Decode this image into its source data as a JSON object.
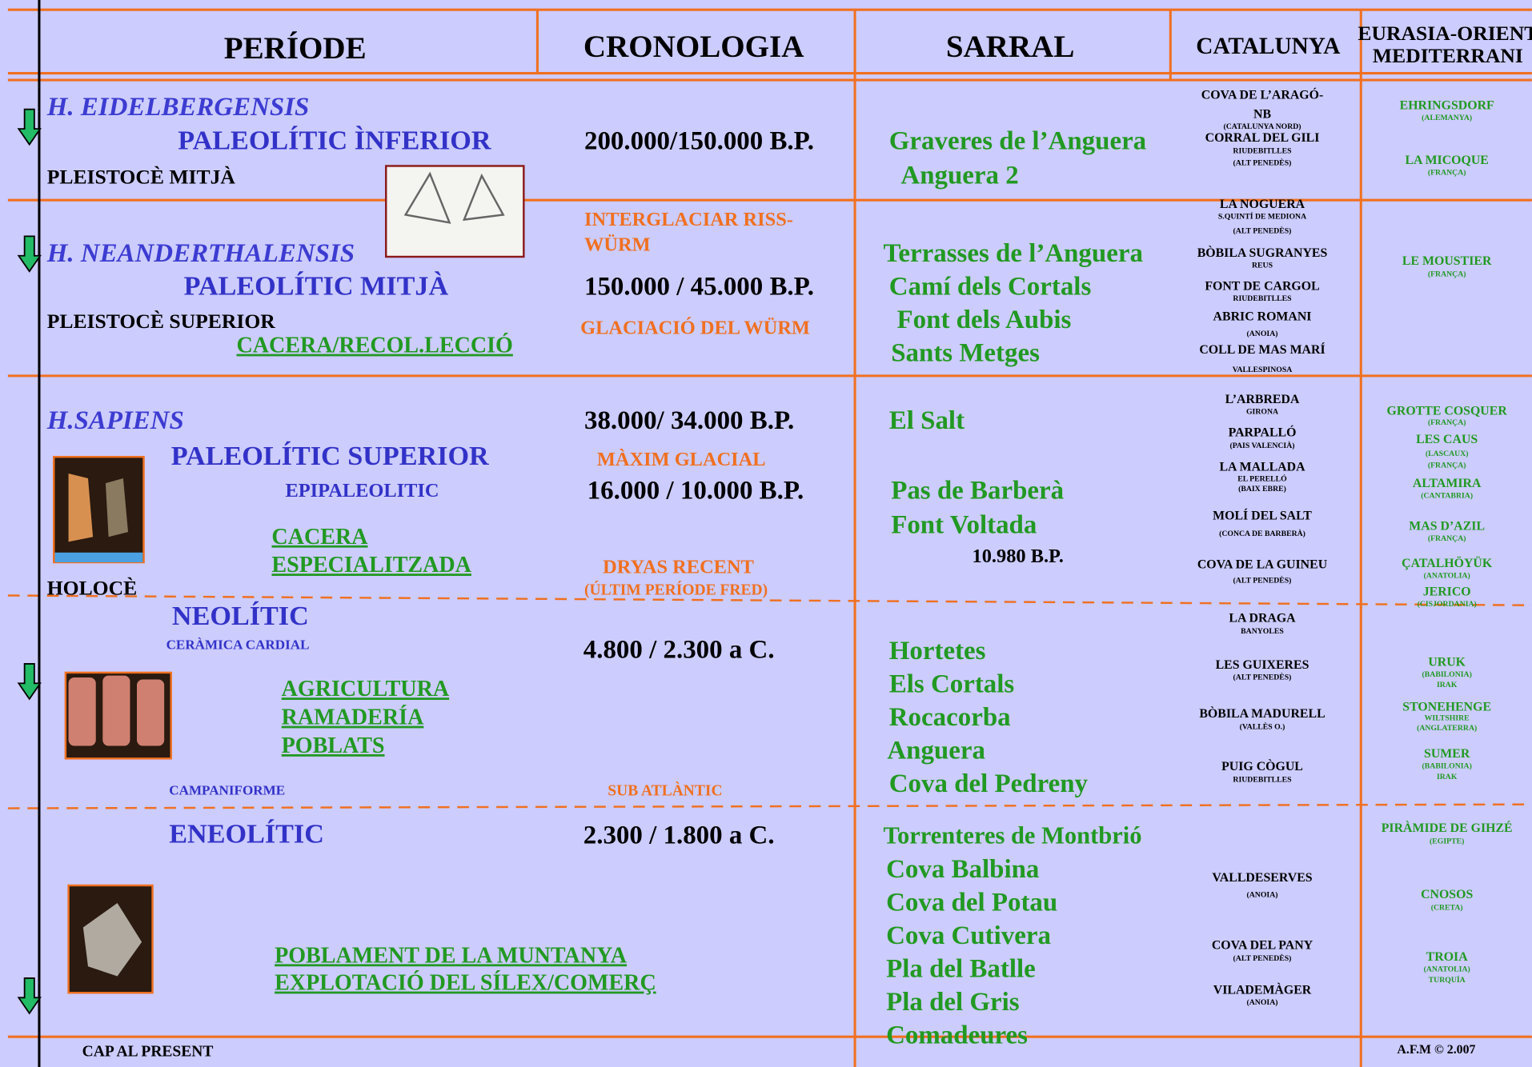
{
  "header": {
    "periode": "PERÍODE",
    "cronologia": "CRONOLOGIA",
    "sarral": "SARRAL",
    "catalunya": "CATALUNYA",
    "eurasia": [
      "EURASIA-ORIENT",
      "MEDITERRANI"
    ]
  },
  "rows": [
    {
      "periode": [
        "H. EIDELBERGENSIS",
        "PALEOLÍTIC ÌNFERIOR",
        "PLEISTOCÈ MITJÀ"
      ],
      "cronologia": [
        "200.000/150.000 B.P."
      ],
      "sarral": [
        "Graveres de l’Anguera",
        "Anguera 2"
      ],
      "catalunya": [
        "COVA DE L’ARAGÓ-",
        "NB",
        "(CATALUNYA NORD)",
        "CORRAL DEL GILI",
        "RIUDEBITLLES",
        "(ALT PENEDÈS)"
      ],
      "eurasia": [
        "EHRINGSDORF",
        "(ALEMANYA)",
        "LA MICOQUE",
        "(FRANÇA)"
      ]
    },
    {
      "periode": [
        "H. NEANDERTHALENSIS",
        "PALEOLÍTIC MITJÀ",
        "PLEISTOCÈ SUPERIOR",
        "CACERA/RECOL.LECCIÓ"
      ],
      "cronologia": [
        "INTERGLACIAR RISS-",
        "WÜRM",
        "150.000 / 45.000 B.P.",
        "GLACIACIÓ DEL WÜRM"
      ],
      "sarral": [
        "Terrasses de l’Anguera",
        "Camí dels Cortals",
        "Font dels Aubis",
        "Sants Metges"
      ],
      "catalunya": [
        "LA NOGUERA",
        "S.QUINTÍ DE MEDIONA",
        "(ALT PENEDÈS)",
        "BÒBILA SUGRANYES",
        "REUS",
        "FONT DE CARGOL",
        "RIUDEBITLLES",
        "ABRIC ROMANI",
        "(ANOIA)",
        "COLL DE MAS MARÍ",
        "VALLESPINOSA"
      ],
      "eurasia": [
        "LE MOUSTIER",
        "(FRANÇA)"
      ]
    },
    {
      "periode": [
        "H.SAPIENS",
        "PALEOLÍTIC SUPERIOR",
        "EPIPALEOLITIC",
        "CACERA",
        "ESPECIALITZADA",
        "HOLOCÈ"
      ],
      "cronologia": [
        "38.000/ 34.000 B.P.",
        "MÀXIM GLACIAL",
        "16.000 / 10.000 B.P.",
        "DRYAS RECENT",
        "(ÚLTIM PERÍODE FRED)"
      ],
      "sarral": [
        "El Salt",
        "Pas de Barberà",
        "Font Voltada",
        "10.980 B.P."
      ],
      "catalunya": [
        "L’ARBREDA",
        "GIRONA",
        "PARPALLÓ",
        "(PAIS VALENCIÀ)",
        "LA MALLADA",
        "EL PERELLÓ",
        "(BAIX EBRE)",
        "MOLÍ DEL SALT",
        "(CONCA DE BARBERÀ)",
        "COVA DE LA GUINEU",
        "(ALT PENEDÈS)"
      ],
      "eurasia": [
        "GROTTE  COSQUER",
        "(FRANÇA)",
        "LES CAUS",
        "(LASCAUX)",
        "(FRANÇA)",
        "ALTAMIRA",
        "(CANTABRIA)",
        "MAS D’AZIL",
        "(FRANÇA)",
        "ÇATALHÖYÜK",
        "(ANATOLIA)",
        "JERICO",
        "(CISJORDANIA)"
      ]
    },
    {
      "periode": [
        "NEOLÍTIC",
        "CERÀMICA CARDIAL",
        "AGRICULTURA",
        "RAMADERÍA",
        "POBLATS",
        "CAMPANIFORME"
      ],
      "cronologia": [
        "4.800 / 2.300 a C.",
        "SUB ATLÀNTIC"
      ],
      "sarral": [
        "Hortetes",
        "Els Cortals",
        "Rocacorba",
        "Anguera",
        "Cova del Pedreny"
      ],
      "catalunya": [
        "LA DRAGA",
        "BANYOLES",
        "LES GUIXERES",
        "(ALT PENEDÈS)",
        "BÒBILA MADURELL",
        "(VALLÈS O.)",
        "PUIG CÒGUL",
        "RIUDEBITLLES"
      ],
      "eurasia": [
        "URUK",
        "(BABILONIA)",
        "IRAK",
        "STONEHENGE",
        "WILTSHIRE",
        "(ANGLATERRA)",
        "SUMER",
        "(BABILONIA)",
        "IRAK"
      ]
    },
    {
      "periode": [
        "ENEOLÍTIC",
        "POBLAMENT DE LA MUNTANYA",
        "EXPLOTACIÓ DEL SÍLEX/COMERÇ"
      ],
      "cronologia": [
        "2.300 / 1.800 a C."
      ],
      "sarral": [
        "Torrenteres de Montbrió",
        "Cova Balbina",
        "Cova del Potau",
        "Cova Cutivera",
        "Pla del Batlle",
        "Pla del Gris",
        "Comadeures"
      ],
      "catalunya": [
        "VALLDESERVES",
        "(ANOIA)",
        "COVA DEL PANY",
        "(ALT PENEDÈS)",
        "VILADEMÀGER",
        "(ANOIA)"
      ],
      "eurasia": [
        "PIRÀMIDE DE GIHZÉ",
        "(EGIPTE)",
        "CNOSOS",
        "(CRETA)",
        "TROIA",
        "(ANATOLIA)",
        "TURQUÍA"
      ]
    }
  ],
  "footer": {
    "left": "CAP AL PRESENT",
    "right": "A.F.M © 2.007"
  }
}
